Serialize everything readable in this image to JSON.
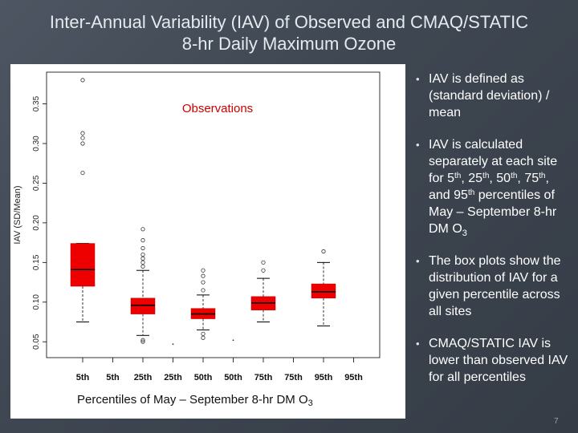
{
  "slide": {
    "title_line1": "Inter-Annual Variability (IAV) of Observed and CMAQ/STATIC",
    "title_line2": "8-hr Daily Maximum Ozone",
    "page_number": "7",
    "x_caption": "Percentiles of May – September 8-hr DM O",
    "x_caption_sub": "3"
  },
  "bullets": [
    {
      "text": "IAV is defined as (standard deviation) / mean"
    },
    {
      "parts": [
        "IAV is calculated separately at each site for 5",
        "th",
        ", 25",
        "th",
        ", 50",
        "th",
        ", 75",
        "th",
        ", and 95",
        "th",
        " percentiles of May – September 8-hr DM O",
        "3"
      ]
    },
    {
      "text": "The box plots show the distribution of IAV for a given percentile across all sites"
    },
    {
      "text": "CMAQ/STATIC IAV is lower than observed IAV for all percentiles"
    }
  ],
  "chart_data": {
    "type": "box",
    "ylabel": "IAV (SD/Mean)",
    "annotation": "Observations",
    "ylim": [
      0.03,
      0.39
    ],
    "yticks": [
      0.05,
      0.1,
      0.15,
      0.2,
      0.25,
      0.3,
      0.35
    ],
    "ytick_labels": [
      "0.05",
      "0.10",
      "0.15",
      "0.20",
      "0.25",
      "0.30",
      "0.35"
    ],
    "categories": [
      "5th",
      "5th",
      "25th",
      "25th",
      "50th",
      "50th",
      "75th",
      "75th",
      "95th",
      "95th"
    ],
    "box_color": "#ee0000",
    "boxes": [
      {
        "category_index": 0,
        "q1": 0.12,
        "median": 0.141,
        "q3": 0.174,
        "lower_whisker": 0.075,
        "upper_whisker": 0.174,
        "outliers": [
          0.263,
          0.3,
          0.307,
          0.313,
          0.38
        ]
      },
      {
        "category_index": 2,
        "q1": 0.085,
        "median": 0.096,
        "q3": 0.105,
        "lower_whisker": 0.058,
        "upper_whisker": 0.14,
        "outliers": [
          0.05,
          0.052,
          0.145,
          0.15,
          0.155,
          0.16,
          0.168,
          0.178,
          0.192
        ]
      },
      {
        "category_index": 4,
        "q1": 0.079,
        "median": 0.085,
        "q3": 0.092,
        "lower_whisker": 0.065,
        "upper_whisker": 0.109,
        "outliers": [
          0.055,
          0.06,
          0.115,
          0.125,
          0.133,
          0.14
        ]
      },
      {
        "category_index": 6,
        "q1": 0.09,
        "median": 0.099,
        "q3": 0.107,
        "lower_whisker": 0.075,
        "upper_whisker": 0.13,
        "outliers": [
          0.14,
          0.15
        ]
      },
      {
        "category_index": 8,
        "q1": 0.105,
        "median": 0.113,
        "q3": 0.123,
        "lower_whisker": 0.07,
        "upper_whisker": 0.15,
        "outliers": [
          0.164
        ]
      }
    ],
    "stray_points": [
      {
        "category_index": 3,
        "y": 0.047
      },
      {
        "category_index": 5,
        "y": 0.052
      }
    ]
  }
}
